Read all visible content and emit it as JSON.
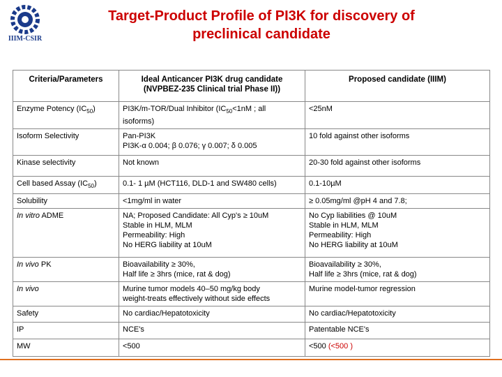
{
  "logo": {
    "text": "IIIM-CSIR"
  },
  "title": [
    "Target-Product Profile of PI3K for discovery of",
    "preclinical candidate"
  ],
  "table": {
    "header": [
      [
        [
          {
            "t": "Criteria/Parameters"
          }
        ]
      ],
      [
        [
          {
            "t": "Ideal Anticancer PI3K drug candidate"
          }
        ],
        [
          {
            "t": "(NVPBEZ-235 Clinical trial Phase II))"
          }
        ]
      ],
      [
        [
          {
            "t": "Proposed candidate (IIIM)"
          }
        ]
      ]
    ],
    "rows": [
      [
        [
          [
            {
              "t": "Enzyme Potency (IC"
            },
            {
              "t": "50",
              "s": "sub"
            },
            {
              "t": ")"
            }
          ]
        ],
        [
          [
            {
              "t": "PI3K/m-TOR/Dual Inhibitor (IC"
            },
            {
              "t": "50",
              "s": "sub"
            },
            {
              "t": "<1nM ; all"
            }
          ],
          [
            {
              "t": "isoforms)"
            }
          ]
        ],
        [
          [
            {
              "t": "<25nM"
            }
          ]
        ]
      ],
      [
        [
          [
            {
              "t": "Isoform Selectivity"
            }
          ]
        ],
        [
          [
            {
              "t": "Pan-PI3K"
            }
          ],
          [
            {
              "t": "PI3K-α 0.004; β  0.076; γ  0.007; δ 0.005"
            }
          ]
        ],
        [
          [
            {
              "t": "10 fold against other isoforms"
            }
          ]
        ]
      ],
      [
        [
          [
            {
              "t": "Kinase selectivity"
            }
          ]
        ],
        [
          [
            {
              "t": "Not known"
            }
          ]
        ],
        [
          [
            {
              "t": "20-30 fold against other isoforms"
            }
          ]
        ]
      ],
      [
        [
          [
            {
              "t": "Cell based Assay (IC"
            },
            {
              "t": "50",
              "s": "sub"
            },
            {
              "t": ")"
            }
          ]
        ],
        [
          [
            {
              "t": "0.1- 1 µM (HCT116, DLD-1 and SW480 cells)"
            }
          ]
        ],
        [
          [
            {
              "t": "0.1-10µM"
            }
          ]
        ]
      ],
      [
        [
          [
            {
              "t": "Solubility"
            }
          ]
        ],
        [
          [
            {
              "t": "<1mg/ml in water"
            }
          ]
        ],
        [
          [
            {
              "t": "≥ 0.05mg/ml  @pH 4 and 7.8;"
            }
          ]
        ]
      ],
      [
        [
          [
            {
              "t": "In vitro",
              "s": "i"
            },
            {
              "t": " ADME"
            }
          ]
        ],
        [
          [
            {
              "t": "NA; Proposed Candidate: All Cyp's ≥ 10uM"
            }
          ],
          [
            {
              "t": "Stable in HLM, MLM"
            }
          ],
          [
            {
              "t": "Permeability: High"
            }
          ],
          [
            {
              "t": "No HERG liability at 10uM"
            }
          ]
        ],
        [
          [
            {
              "t": "No Cyp liabilities @ 10uM"
            }
          ],
          [
            {
              "t": "Stable in HLM, MLM"
            }
          ],
          [
            {
              "t": "Permeability: High"
            }
          ],
          [
            {
              "t": "No HERG liability at 10uM"
            }
          ]
        ]
      ],
      [
        [
          [
            {
              "t": "In vivo",
              "s": "i"
            },
            {
              "t": " PK"
            }
          ]
        ],
        [
          [
            {
              "t": "Bioavailability ≥ 30%,"
            }
          ],
          [
            {
              "t": "Half life ≥ 3hrs (mice, rat & dog)"
            }
          ]
        ],
        [
          [
            {
              "t": "Bioavailability ≥ 30%,"
            }
          ],
          [
            {
              "t": "Half life ≥ 3hrs (mice, rat & dog)"
            }
          ]
        ]
      ],
      [
        [
          [
            {
              "t": "In vivo",
              "s": "i"
            }
          ]
        ],
        [
          [
            {
              "t": "Murine tumor models 40–50 mg/kg body"
            }
          ],
          [
            {
              "t": "weight-treats effectively without side effects"
            }
          ]
        ],
        [
          [
            {
              "t": "Murine model-tumor regression"
            }
          ]
        ]
      ],
      [
        [
          [
            {
              "t": "Safety"
            }
          ]
        ],
        [
          [
            {
              "t": "No cardiac/Hepatotoxicity"
            }
          ]
        ],
        [
          [
            {
              "t": "No cardiac/Hepatotoxicity"
            }
          ]
        ]
      ],
      [
        [
          [
            {
              "t": "IP"
            }
          ]
        ],
        [
          [
            {
              "t": "NCE's"
            }
          ]
        ],
        [
          [
            {
              "t": "Patentable NCE's"
            }
          ]
        ]
      ],
      [
        [
          [
            {
              "t": "MW"
            }
          ]
        ],
        [
          [
            {
              "t": "<500"
            }
          ]
        ],
        [
          [
            {
              "t": "<500 "
            },
            {
              "t": "(<500 )",
              "s": "red"
            }
          ]
        ]
      ]
    ]
  }
}
